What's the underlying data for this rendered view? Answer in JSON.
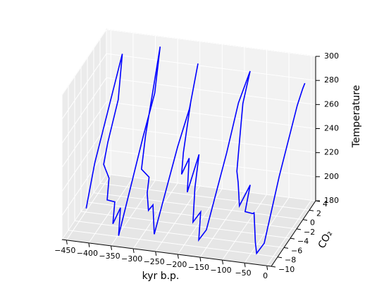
{
  "chart_data": {
    "type": "line3d",
    "x_label": "kyr b.p.",
    "y_label": "CO₂",
    "z_label": "Temperature",
    "xlim": [
      -460,
      10
    ],
    "ylim": [
      -10,
      4
    ],
    "zlim": [
      180,
      300
    ],
    "xticks": [
      {
        "value": -450,
        "label": "−450"
      },
      {
        "value": -400,
        "label": "−400"
      },
      {
        "value": -350,
        "label": "−350"
      },
      {
        "value": -300,
        "label": "−300"
      },
      {
        "value": -250,
        "label": "−250"
      },
      {
        "value": -200,
        "label": "−200"
      },
      {
        "value": -150,
        "label": "−150"
      },
      {
        "value": -100,
        "label": "−100"
      },
      {
        "value": -50,
        "label": "−50"
      },
      0
    ],
    "yticks": [
      {
        "value": -10,
        "label": "−10"
      },
      {
        "value": -8,
        "label": "−8"
      },
      {
        "value": -6,
        "label": "−6"
      },
      {
        "value": -4,
        "label": "−4"
      },
      {
        "value": -2,
        "label": "−2"
      },
      0,
      2,
      4
    ],
    "zticks": [
      180,
      200,
      220,
      240,
      260,
      280,
      300
    ],
    "grid": true,
    "series": [
      {
        "color": "#0000ff",
        "x": [
          -420,
          -415,
          -410,
          -405,
          -400,
          -395,
          -390,
          -380,
          -370,
          -360,
          -350,
          -340,
          -335,
          -330,
          -325,
          -320,
          -315,
          -310,
          -300,
          -290,
          -280,
          -270,
          -260,
          -250,
          -245,
          -240,
          -235,
          -230,
          -220,
          -210,
          -200,
          -195,
          -190,
          -180,
          -170,
          -160,
          -150,
          -140,
          -135,
          -130,
          -125,
          -120,
          -110,
          -100,
          -90,
          -80,
          -70,
          -60,
          -50,
          -40,
          -30,
          -20,
          -15,
          -10,
          -5,
          0
        ],
        "y": [
          -8,
          -6,
          2,
          0,
          -4,
          -6,
          -5,
          -7,
          -6,
          -8,
          -7,
          -9,
          -2,
          1,
          2,
          -1,
          -4,
          -6,
          -5,
          -7,
          -8,
          -8,
          -9,
          -3,
          0,
          2,
          -1,
          -4,
          -6,
          -5,
          -7,
          -4,
          -6,
          -8,
          -7,
          -9,
          -8,
          -3,
          0,
          3,
          0,
          -2,
          -4,
          -5,
          -6,
          -4,
          -7,
          -6,
          -7,
          -8,
          -9,
          -8,
          -4,
          1,
          2,
          2
        ],
        "z": [
          200,
          230,
          290,
          260,
          240,
          230,
          215,
          205,
          200,
          190,
          200,
          185,
          240,
          265,
          300,
          275,
          250,
          230,
          220,
          215,
          205,
          210,
          190,
          240,
          260,
          290,
          270,
          240,
          230,
          240,
          220,
          240,
          220,
          200,
          205,
          190,
          195,
          240,
          270,
          285,
          270,
          240,
          230,
          225,
          210,
          220,
          210,
          205,
          210,
          190,
          185,
          190,
          230,
          270,
          280,
          285
        ]
      }
    ]
  }
}
